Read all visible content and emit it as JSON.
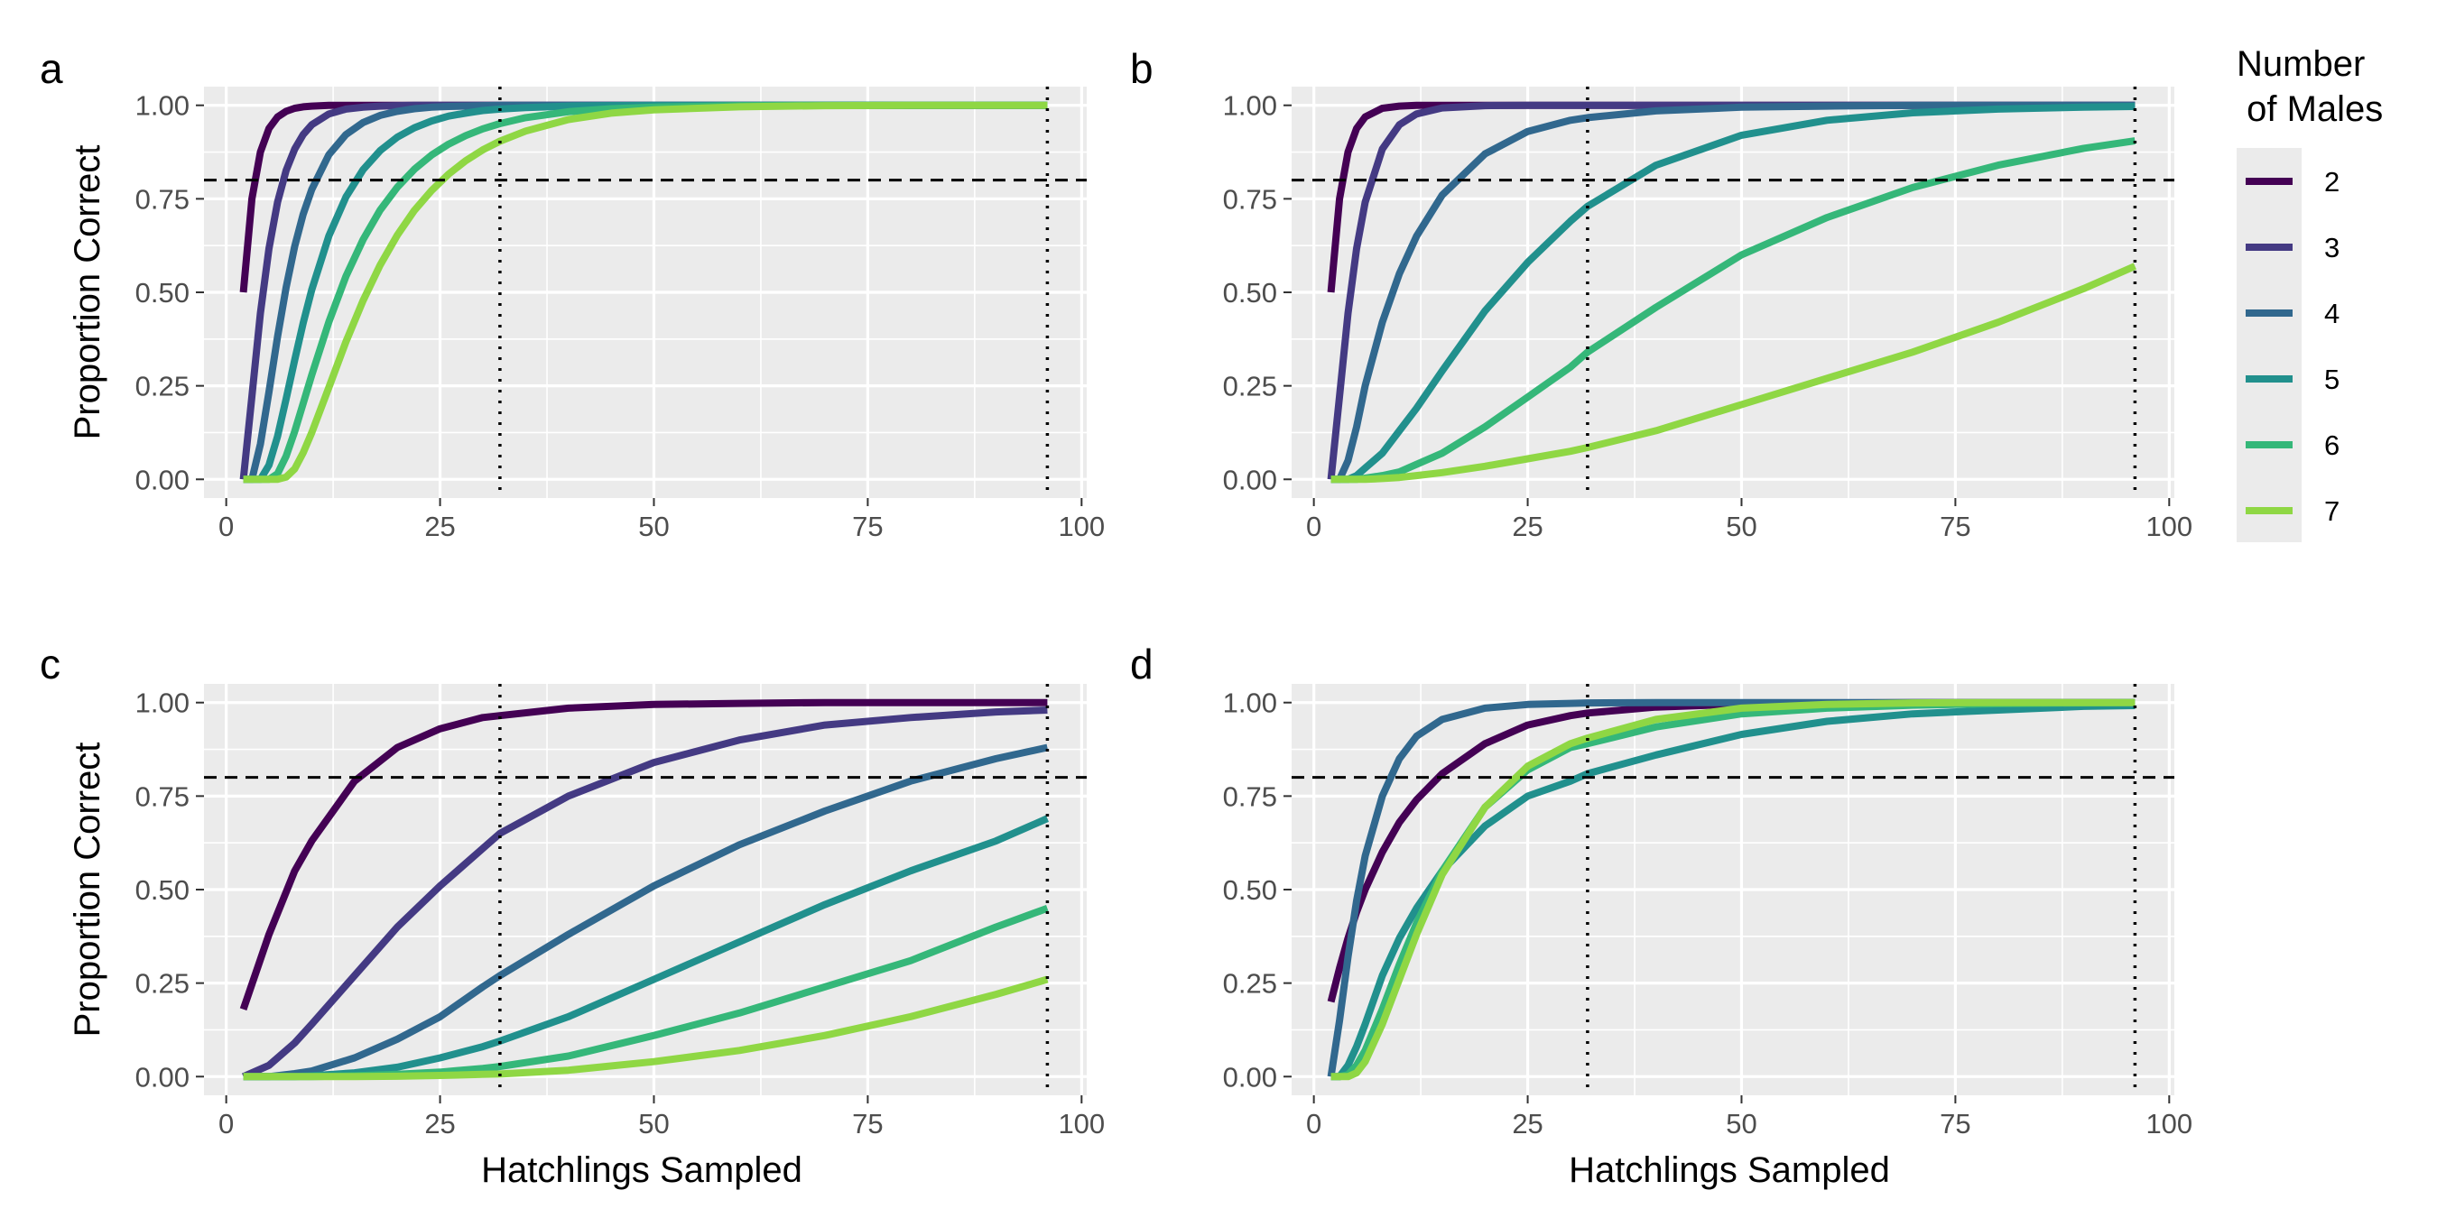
{
  "legend": {
    "title_line1": "Number",
    "title_line2": " of Males",
    "colors": [
      "#440154",
      "#443a83",
      "#31688e",
      "#21908d",
      "#35b779",
      "#8fd744"
    ]
  },
  "chart_data": [
    {
      "panel": "a",
      "type": "line",
      "xlabel": "",
      "ylabel": "Proportion Correct",
      "xlim": [
        0,
        100
      ],
      "ylim": [
        0,
        1
      ],
      "x_ticks": [
        0,
        25,
        50,
        75,
        100
      ],
      "y_ticks": [
        "0.00",
        "0.25",
        "0.50",
        "0.75",
        "1.00"
      ],
      "reference_lines": {
        "horizontal": [
          0.8
        ],
        "vertical": [
          32,
          96
        ]
      },
      "x": [
        2,
        3,
        4,
        5,
        6,
        7,
        8,
        9,
        10,
        12,
        14,
        16,
        18,
        20,
        22,
        24,
        26,
        28,
        30,
        32,
        35,
        40,
        45,
        50,
        60,
        70,
        80,
        90,
        96
      ],
      "series": [
        {
          "name": "2",
          "values": [
            0.5,
            0.75,
            0.875,
            0.938,
            0.969,
            0.984,
            0.992,
            0.996,
            0.998,
            1,
            1,
            1,
            1,
            1,
            1,
            1,
            1,
            1,
            1,
            1,
            1,
            1,
            1,
            1,
            1,
            1,
            1,
            1,
            1
          ]
        },
        {
          "name": "3",
          "values": [
            0,
            0.222,
            0.444,
            0.617,
            0.741,
            0.826,
            0.883,
            0.922,
            0.948,
            0.977,
            0.99,
            0.995,
            0.998,
            0.999,
            1,
            1,
            1,
            1,
            1,
            1,
            1,
            1,
            1,
            1,
            1,
            1,
            1,
            1,
            1
          ]
        },
        {
          "name": "4",
          "values": [
            0,
            0,
            0.094,
            0.234,
            0.381,
            0.513,
            0.623,
            0.709,
            0.775,
            0.868,
            0.922,
            0.954,
            0.973,
            0.984,
            0.991,
            0.995,
            0.997,
            0.998,
            0.999,
            1,
            1,
            1,
            1,
            1,
            1,
            1,
            1,
            1,
            1
          ]
        },
        {
          "name": "5",
          "values": [
            0,
            0,
            0,
            0.038,
            0.115,
            0.215,
            0.319,
            0.418,
            0.507,
            0.651,
            0.755,
            0.828,
            0.879,
            0.915,
            0.94,
            0.958,
            0.971,
            0.979,
            0.986,
            0.99,
            0.994,
            0.998,
            0.999,
            1,
            1,
            1,
            1,
            1,
            1
          ]
        },
        {
          "name": "6",
          "values": [
            0,
            0,
            0,
            0,
            0.015,
            0.062,
            0.128,
            0.203,
            0.279,
            0.421,
            0.543,
            0.641,
            0.72,
            0.781,
            0.829,
            0.867,
            0.896,
            0.919,
            0.937,
            0.951,
            0.967,
            0.983,
            0.991,
            0.995,
            0.999,
            1,
            1,
            1,
            1
          ]
        },
        {
          "name": "7",
          "values": [
            0,
            0,
            0,
            0,
            0,
            0.006,
            0.028,
            0.071,
            0.125,
            0.246,
            0.368,
            0.478,
            0.573,
            0.653,
            0.719,
            0.772,
            0.816,
            0.852,
            0.881,
            0.904,
            0.931,
            0.962,
            0.979,
            0.988,
            0.996,
            0.999,
            1,
            1,
            1
          ]
        }
      ]
    },
    {
      "panel": "b",
      "type": "line",
      "xlabel": "",
      "ylabel": "",
      "xlim": [
        0,
        100
      ],
      "ylim": [
        0,
        1
      ],
      "x_ticks": [
        0,
        25,
        50,
        75,
        100
      ],
      "y_ticks": [
        "0.00",
        "0.25",
        "0.50",
        "0.75",
        "1.00"
      ],
      "reference_lines": {
        "horizontal": [
          0.8
        ],
        "vertical": [
          32,
          96
        ]
      },
      "x": [
        2,
        3,
        4,
        5,
        6,
        8,
        10,
        12,
        15,
        20,
        25,
        30,
        32,
        40,
        50,
        60,
        70,
        80,
        90,
        96
      ],
      "series": [
        {
          "name": "2",
          "values": [
            0.5,
            0.75,
            0.875,
            0.938,
            0.969,
            0.992,
            0.998,
            1,
            1,
            1,
            1,
            1,
            1,
            1,
            1,
            1,
            1,
            1,
            1,
            1
          ]
        },
        {
          "name": "3",
          "values": [
            0,
            0.222,
            0.444,
            0.617,
            0.741,
            0.883,
            0.948,
            0.977,
            0.993,
            0.999,
            1,
            1,
            1,
            1,
            1,
            1,
            1,
            1,
            1,
            1
          ]
        },
        {
          "name": "4",
          "values": [
            0,
            0,
            0.05,
            0.14,
            0.25,
            0.42,
            0.55,
            0.65,
            0.76,
            0.87,
            0.93,
            0.96,
            0.967,
            0.985,
            0.995,
            0.998,
            1,
            1,
            1,
            1
          ]
        },
        {
          "name": "5",
          "values": [
            0,
            0,
            0,
            0.01,
            0.03,
            0.07,
            0.13,
            0.19,
            0.29,
            0.45,
            0.58,
            0.69,
            0.73,
            0.84,
            0.92,
            0.96,
            0.98,
            0.99,
            0.995,
            0.997
          ]
        },
        {
          "name": "6",
          "values": [
            0,
            0,
            0,
            0,
            0.003,
            0.01,
            0.02,
            0.04,
            0.07,
            0.14,
            0.22,
            0.3,
            0.34,
            0.46,
            0.6,
            0.7,
            0.78,
            0.84,
            0.885,
            0.905
          ]
        },
        {
          "name": "7",
          "values": [
            0,
            0,
            0,
            0,
            0,
            0.002,
            0.005,
            0.01,
            0.018,
            0.035,
            0.055,
            0.075,
            0.085,
            0.13,
            0.2,
            0.27,
            0.34,
            0.42,
            0.51,
            0.57
          ]
        }
      ]
    },
    {
      "panel": "c",
      "type": "line",
      "xlabel": "Hatchlings Sampled",
      "ylabel": "Proportion Correct",
      "xlim": [
        0,
        100
      ],
      "ylim": [
        0,
        1
      ],
      "x_ticks": [
        0,
        25,
        50,
        75,
        100
      ],
      "y_ticks": [
        "0.00",
        "0.25",
        "0.50",
        "0.75",
        "1.00"
      ],
      "reference_lines": {
        "horizontal": [
          0.8
        ],
        "vertical": [
          32,
          96
        ]
      },
      "x": [
        2,
        5,
        8,
        10,
        15,
        20,
        25,
        30,
        32,
        40,
        50,
        60,
        70,
        80,
        90,
        96
      ],
      "series": [
        {
          "name": "2",
          "values": [
            0.18,
            0.38,
            0.55,
            0.63,
            0.79,
            0.88,
            0.93,
            0.96,
            0.965,
            0.985,
            0.995,
            0.998,
            1,
            1,
            1,
            1
          ]
        },
        {
          "name": "3",
          "values": [
            0,
            0.03,
            0.09,
            0.14,
            0.27,
            0.4,
            0.51,
            0.61,
            0.65,
            0.75,
            0.84,
            0.9,
            0.94,
            0.96,
            0.975,
            0.98
          ]
        },
        {
          "name": "4",
          "values": [
            0,
            0,
            0.008,
            0.015,
            0.05,
            0.1,
            0.16,
            0.24,
            0.27,
            0.38,
            0.51,
            0.62,
            0.71,
            0.79,
            0.85,
            0.88
          ]
        },
        {
          "name": "5",
          "values": [
            0,
            0,
            0,
            0.002,
            0.01,
            0.025,
            0.05,
            0.08,
            0.095,
            0.16,
            0.26,
            0.36,
            0.46,
            0.55,
            0.63,
            0.69
          ]
        },
        {
          "name": "6",
          "values": [
            0,
            0,
            0,
            0,
            0.002,
            0.006,
            0.012,
            0.022,
            0.027,
            0.055,
            0.11,
            0.17,
            0.24,
            0.31,
            0.4,
            0.45
          ]
        },
        {
          "name": "7",
          "values": [
            0,
            0,
            0,
            0,
            0,
            0.001,
            0.003,
            0.006,
            0.007,
            0.017,
            0.04,
            0.07,
            0.11,
            0.16,
            0.22,
            0.26
          ]
        }
      ]
    },
    {
      "panel": "d",
      "type": "line",
      "xlabel": "Hatchlings Sampled",
      "ylabel": "",
      "xlim": [
        0,
        100
      ],
      "ylim": [
        0,
        1
      ],
      "x_ticks": [
        0,
        25,
        50,
        75,
        100
      ],
      "y_ticks": [
        "0.00",
        "0.25",
        "0.50",
        "0.75",
        "1.00"
      ],
      "reference_lines": {
        "horizontal": [
          0.8
        ],
        "vertical": [
          32,
          96
        ]
      },
      "x": [
        2,
        3,
        4,
        5,
        6,
        8,
        10,
        12,
        15,
        20,
        25,
        30,
        32,
        40,
        50,
        60,
        70,
        80,
        90,
        96
      ],
      "series": [
        {
          "name": "2",
          "values": [
            0.2,
            0.29,
            0.37,
            0.44,
            0.5,
            0.6,
            0.68,
            0.74,
            0.81,
            0.89,
            0.94,
            0.965,
            0.972,
            0.988,
            0.996,
            0.999,
            1,
            1,
            1,
            1
          ]
        },
        {
          "name": "4",
          "values": [
            0,
            0.15,
            0.32,
            0.47,
            0.59,
            0.75,
            0.85,
            0.91,
            0.955,
            0.985,
            0.995,
            0.998,
            0.999,
            1,
            1,
            1,
            1,
            1,
            1,
            1
          ]
        },
        {
          "name": "5",
          "values": [
            0,
            0,
            0.03,
            0.08,
            0.14,
            0.27,
            0.37,
            0.45,
            0.55,
            0.67,
            0.75,
            0.79,
            0.81,
            0.86,
            0.915,
            0.95,
            0.97,
            0.98,
            0.99,
            0.992
          ]
        },
        {
          "name": "6",
          "values": [
            0,
            0,
            0.005,
            0.03,
            0.07,
            0.18,
            0.3,
            0.41,
            0.55,
            0.72,
            0.82,
            0.88,
            0.89,
            0.935,
            0.97,
            0.985,
            0.993,
            0.997,
            0.999,
            1
          ]
        },
        {
          "name": "7",
          "values": [
            0,
            0,
            0,
            0.01,
            0.04,
            0.14,
            0.26,
            0.38,
            0.54,
            0.72,
            0.83,
            0.89,
            0.905,
            0.955,
            0.985,
            0.995,
            0.999,
            1,
            1,
            1
          ]
        }
      ]
    }
  ]
}
